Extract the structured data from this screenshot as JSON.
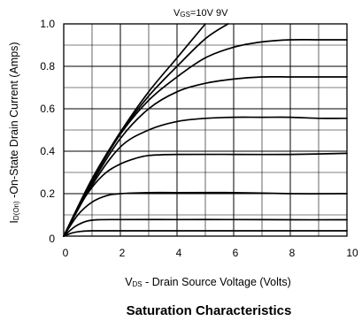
{
  "chart_data": {
    "type": "line",
    "title": "Saturation Characteristics",
    "xlabel": {
      "main": "V",
      "sub": "DS",
      "rest": " - Drain Source Voltage (Volts)"
    },
    "ylabel": {
      "main": "I",
      "sub": "D(On)",
      "rest": " -On-State Drain Current (Amps)"
    },
    "annotation": {
      "main": "V",
      "sub": "GS",
      "rest": "=10V  9V"
    },
    "xlim": [
      0,
      10
    ],
    "ylim": [
      0,
      1.0
    ],
    "xticks": [
      "0",
      "2",
      "4",
      "6",
      "8",
      "10"
    ],
    "yticks": [
      "0",
      "0.2",
      "0.4",
      "0.6",
      "0.8",
      "1.0"
    ],
    "grid": true,
    "series": [
      {
        "x": [
          0,
          1,
          2,
          3,
          4,
          5
        ],
        "y": [
          0,
          0.27,
          0.49,
          0.68,
          0.84,
          1.0
        ]
      },
      {
        "x": [
          0,
          1,
          2,
          3,
          4,
          5,
          5.8
        ],
        "y": [
          0,
          0.265,
          0.485,
          0.66,
          0.8,
          0.93,
          1.0
        ]
      },
      {
        "x": [
          0,
          1,
          2,
          3,
          4,
          5,
          6,
          7,
          8,
          9,
          10
        ],
        "y": [
          0,
          0.26,
          0.48,
          0.64,
          0.75,
          0.84,
          0.89,
          0.915,
          0.925,
          0.925,
          0.925
        ]
      },
      {
        "x": [
          0,
          1,
          2,
          3,
          4,
          5,
          6,
          7,
          8,
          9,
          10
        ],
        "y": [
          0,
          0.25,
          0.46,
          0.6,
          0.68,
          0.72,
          0.74,
          0.75,
          0.75,
          0.75,
          0.75
        ]
      },
      {
        "x": [
          0,
          1,
          2,
          3,
          4,
          5,
          6,
          7,
          8,
          9,
          10
        ],
        "y": [
          0,
          0.24,
          0.42,
          0.5,
          0.54,
          0.555,
          0.56,
          0.56,
          0.56,
          0.555,
          0.555
        ]
      },
      {
        "x": [
          0,
          0.5,
          1,
          1.5,
          2,
          2.5,
          3,
          4,
          6,
          8,
          10
        ],
        "y": [
          0,
          0.13,
          0.23,
          0.3,
          0.34,
          0.365,
          0.38,
          0.385,
          0.385,
          0.385,
          0.39
        ]
      },
      {
        "x": [
          0,
          0.5,
          1,
          1.5,
          2,
          3,
          4,
          6,
          8,
          10
        ],
        "y": [
          0,
          0.1,
          0.16,
          0.19,
          0.2,
          0.205,
          0.205,
          0.205,
          0.2,
          0.2
        ]
      },
      {
        "x": [
          0,
          0.4,
          0.8,
          1.2,
          2,
          4,
          6,
          8,
          10
        ],
        "y": [
          0,
          0.045,
          0.07,
          0.077,
          0.078,
          0.078,
          0.078,
          0.077,
          0.077
        ]
      },
      {
        "x": [
          0,
          0.3,
          0.6,
          1,
          2,
          4,
          6,
          8,
          10
        ],
        "y": [
          0,
          0.015,
          0.022,
          0.025,
          0.025,
          0.025,
          0.025,
          0.025,
          0.025
        ]
      }
    ]
  }
}
